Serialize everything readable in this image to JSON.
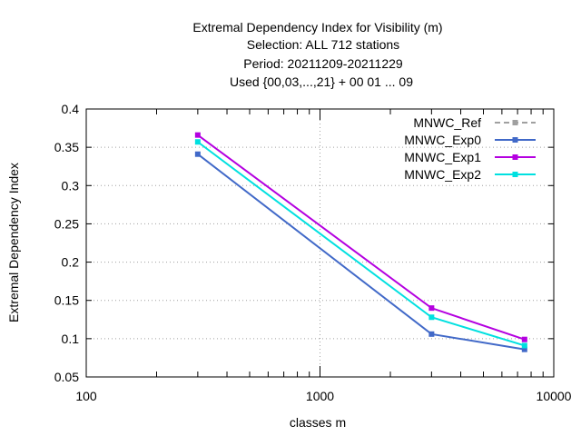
{
  "chart_data": {
    "type": "line",
    "title_lines": [
      "Extremal Dependency Index  for Visibility (m)",
      "Selection: ALL    712 stations",
      "Period: 20211209-20211229",
      "Used {00,03,...,21} + 00 01 ... 09"
    ],
    "xlabel": "classes m",
    "ylabel": "Extremal Dependency Index",
    "x_scale": "log",
    "xlim": [
      100,
      10000
    ],
    "ylim": [
      0.05,
      0.4
    ],
    "x_ticks": [
      "100",
      "1000",
      "10000"
    ],
    "y_ticks": [
      "0.05",
      "0.1",
      "0.15",
      "0.2",
      "0.25",
      "0.3",
      "0.35",
      "0.4"
    ],
    "grid": true,
    "legend_position": "top-right",
    "series": [
      {
        "name": "MNWC_Ref",
        "color": "#a0a0a0",
        "dashed": true,
        "x": [],
        "values": []
      },
      {
        "name": "MNWC_Exp0",
        "color": "#4169c8",
        "dashed": false,
        "x": [
          300,
          3000,
          7500
        ],
        "values": [
          0.341,
          0.106,
          0.086
        ]
      },
      {
        "name": "MNWC_Exp1",
        "color": "#b400e0",
        "dashed": false,
        "x": [
          300,
          3000,
          7500
        ],
        "values": [
          0.366,
          0.14,
          0.099
        ]
      },
      {
        "name": "MNWC_Exp2",
        "color": "#00e0e0",
        "dashed": false,
        "x": [
          300,
          3000,
          7500
        ],
        "values": [
          0.357,
          0.128,
          0.091
        ]
      }
    ]
  }
}
